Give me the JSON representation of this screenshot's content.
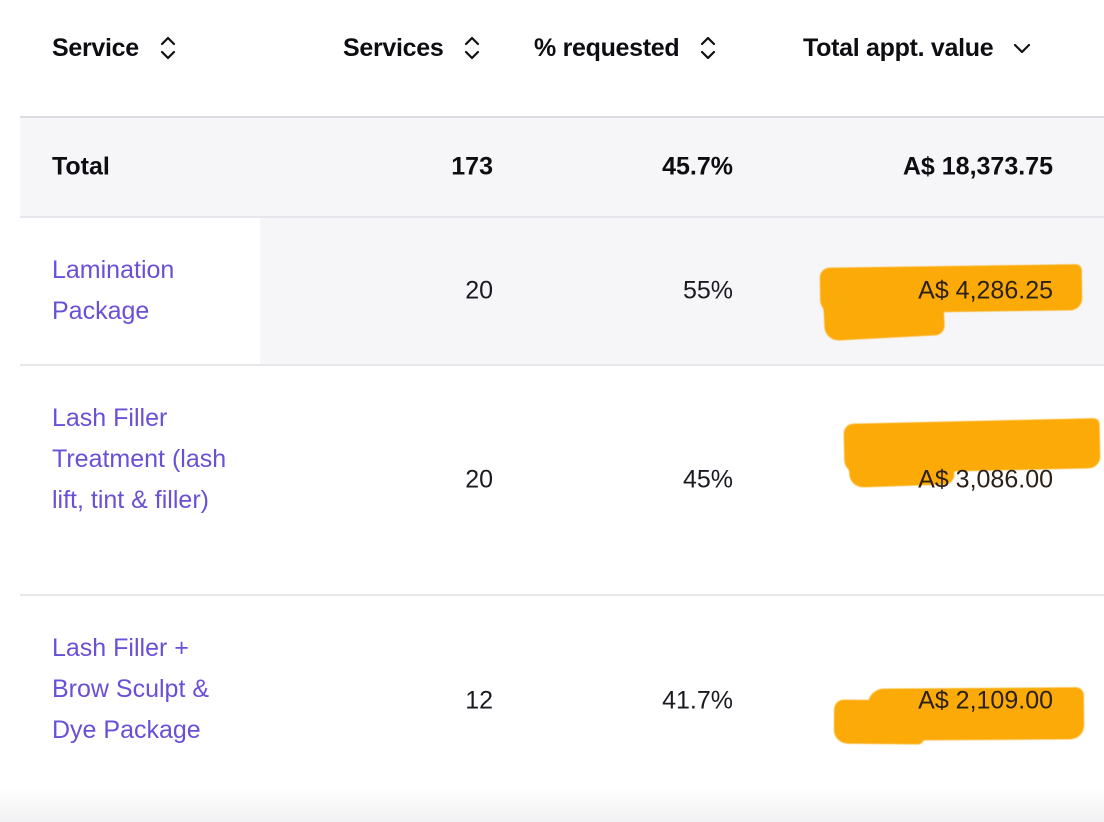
{
  "table": {
    "columns": [
      {
        "label": "Service",
        "sort_icon": "sort-both-icon"
      },
      {
        "label": "Services",
        "sort_icon": "sort-both-icon"
      },
      {
        "label": "% requested",
        "sort_icon": "sort-both-icon"
      },
      {
        "label": "Total appt. value",
        "sort_icon": "sort-descending-icon"
      }
    ],
    "total": {
      "label": "Total",
      "services": "173",
      "requested": "45.7%",
      "value": "A$ 18,373.75"
    },
    "rows": [
      {
        "name": "Lamination Package",
        "services": "20",
        "requested": "55%",
        "value": "A$ 4,286.25"
      },
      {
        "name": "Lash Filler Treatment (lash lift, tint & filler)",
        "services": "20",
        "requested": "45%",
        "value": "A$ 3,086.00"
      },
      {
        "name": "Lash Filler + Brow Sculpt & Dye Package",
        "services": "12",
        "requested": "41.7%",
        "value": "A$ 2,109.00"
      }
    ]
  },
  "colors": {
    "link": "#6950d6",
    "highlight": "#fbaa07",
    "total_row_bg": "#f6f6f9"
  }
}
